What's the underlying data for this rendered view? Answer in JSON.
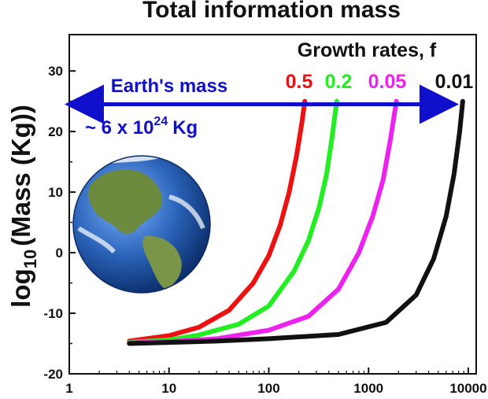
{
  "colors": {
    "arrow": "#1010cc",
    "axis": "#111111",
    "ocean": "#2a63b8",
    "land": "#6b8a3e",
    "cloud": "#ffffff"
  },
  "chart_data": {
    "type": "line",
    "title": "Total information mass",
    "ylabel_main": "log",
    "ylabel_sub": "10",
    "ylabel_rest": "(Mass (Kg))",
    "xscale": "log",
    "xlim": [
      1,
      12000
    ],
    "ylim": [
      -20,
      36
    ],
    "xticks": [
      1,
      10,
      100,
      1000,
      10000
    ],
    "xtick_labels": [
      "1",
      "10",
      "100",
      "1000",
      "10000"
    ],
    "yticks": [
      -20,
      -10,
      0,
      10,
      20,
      30
    ],
    "ytick_labels": [
      "-20",
      "-10",
      "0",
      "10",
      "20",
      "30"
    ],
    "legend_title": "Growth rates, f",
    "series": [
      {
        "name": "0.5",
        "color": "#ee1111",
        "x": [
          4,
          10,
          20,
          40,
          70,
          100,
          130,
          160,
          190,
          215,
          230
        ],
        "y": [
          -14.6,
          -13.7,
          -12.3,
          -9.5,
          -5.0,
          -0.5,
          4.5,
          10.0,
          16.0,
          21.5,
          25.0
        ]
      },
      {
        "name": "0.2",
        "color": "#22ee22",
        "x": [
          4,
          10,
          20,
          50,
          100,
          180,
          250,
          320,
          380,
          430,
          480
        ],
        "y": [
          -14.8,
          -14.4,
          -13.6,
          -11.8,
          -8.8,
          -3.0,
          2.0,
          7.5,
          13.0,
          19.0,
          25.0
        ]
      },
      {
        "name": "0.05",
        "color": "#ee22ee",
        "x": [
          4,
          10,
          30,
          100,
          250,
          500,
          800,
          1100,
          1400,
          1650,
          1900
        ],
        "y": [
          -14.9,
          -14.7,
          -14.2,
          -12.8,
          -10.5,
          -6.0,
          0.0,
          6.0,
          12.0,
          18.5,
          25.0
        ]
      },
      {
        "name": "0.01",
        "color": "#111111",
        "x": [
          4,
          30,
          100,
          500,
          1500,
          3000,
          4500,
          6000,
          7200,
          8200,
          8800
        ],
        "y": [
          -15.0,
          -14.6,
          -14.2,
          -13.5,
          -11.5,
          -7.0,
          -1.0,
          6.0,
          13.0,
          20.0,
          25.0
        ]
      }
    ],
    "annotations": {
      "earth_label": "Earth's mass",
      "earth_value_prefix": "~ 6 x 10",
      "earth_value_exp": "24",
      "earth_value_unit": "Kg",
      "earth_mass_y": 24.5
    }
  }
}
